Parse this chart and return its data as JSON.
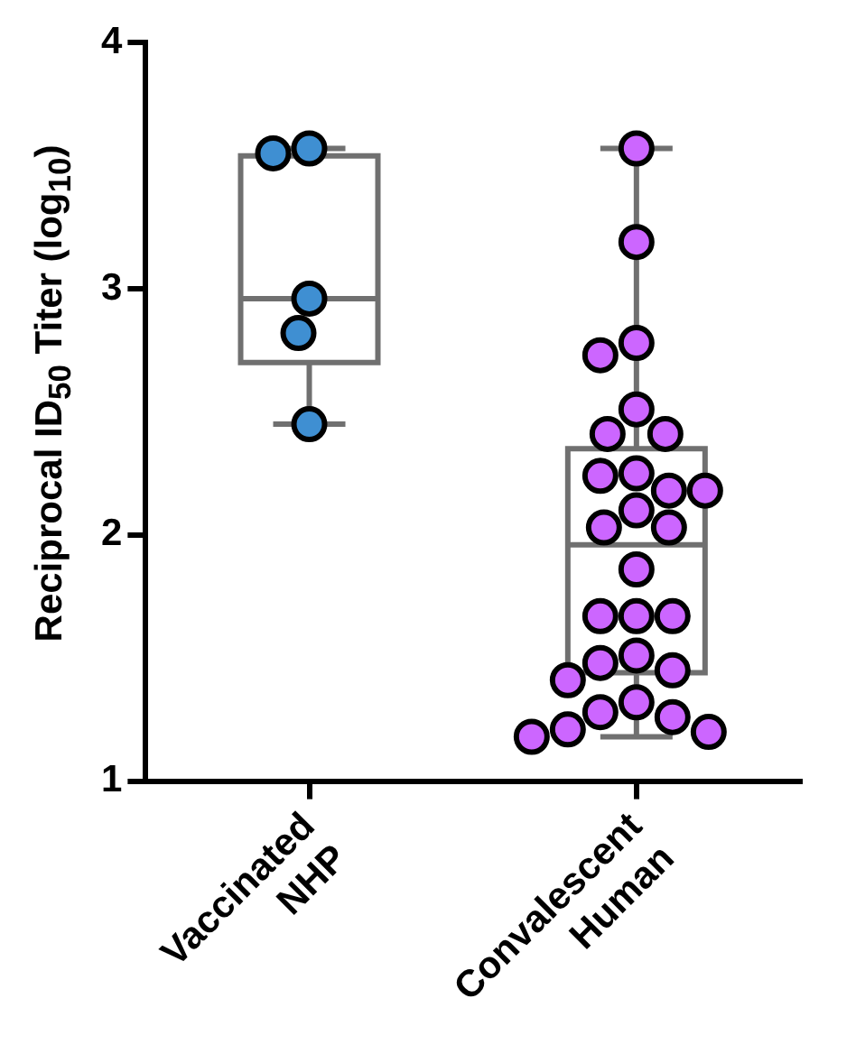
{
  "chart_data": {
    "type": "box",
    "ylabel": "Reciprocal ID$_{50}$ Titer (log$_{10}$)",
    "categories": [
      "Vaccinated NHP",
      "Convalescent Human"
    ],
    "ylim": [
      1,
      4
    ],
    "yticks": [
      1,
      2,
      3,
      4
    ],
    "grid": false,
    "legend": false,
    "marker": "circle",
    "boxes": [
      {
        "low": 2.45,
        "q1": 2.7,
        "median": 2.96,
        "q3": 3.54,
        "high": 3.57
      },
      {
        "low": 1.18,
        "q1": 1.44,
        "median": 1.96,
        "q3": 2.35,
        "high": 3.57
      }
    ],
    "series": [
      {
        "type": "scatter",
        "color": "#3f8fd2",
        "x": [
          "Vaccinated NHP",
          "Vaccinated NHP",
          "Vaccinated NHP",
          "Vaccinated NHP",
          "Vaccinated NHP"
        ],
        "values": [
          3.57,
          3.55,
          2.96,
          2.82,
          2.45
        ]
      },
      {
        "type": "scatter",
        "color": "#cc66ff",
        "x": [
          "Convalescent Human",
          "Convalescent Human",
          "Convalescent Human",
          "Convalescent Human",
          "Convalescent Human",
          "Convalescent Human",
          "Convalescent Human",
          "Convalescent Human",
          "Convalescent Human",
          "Convalescent Human",
          "Convalescent Human",
          "Convalescent Human",
          "Convalescent Human",
          "Convalescent Human",
          "Convalescent Human",
          "Convalescent Human",
          "Convalescent Human",
          "Convalescent Human",
          "Convalescent Human",
          "Convalescent Human",
          "Convalescent Human",
          "Convalescent Human",
          "Convalescent Human",
          "Convalescent Human",
          "Convalescent Human",
          "Convalescent Human",
          "Convalescent Human",
          "Convalescent Human"
        ],
        "values": [
          3.57,
          3.19,
          2.78,
          2.73,
          2.51,
          2.41,
          2.41,
          2.25,
          2.24,
          2.18,
          2.18,
          2.1,
          2.03,
          2.03,
          1.86,
          1.67,
          1.67,
          1.67,
          1.51,
          1.45,
          1.48,
          1.41,
          1.32,
          1.28,
          1.21,
          1.2,
          1.18,
          1.26
        ]
      }
    ]
  }
}
